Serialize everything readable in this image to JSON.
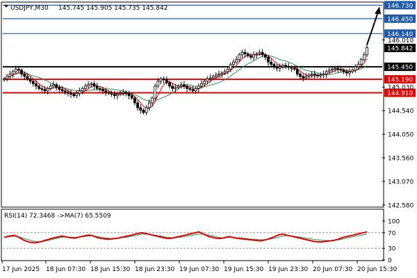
{
  "header": {
    "symbol": "USDJPY,M30",
    "ohlc": "145.745 145.905 145.735 145.842"
  },
  "rsi_header": "RSI(14) 72.3468   ->MA(7) 65.5509",
  "chart_data": [
    {
      "type": "candlestick",
      "title": "USDJPY,M30",
      "ylim": [
        142.55,
        146.78
      ],
      "y_ticks": [
        "146.730",
        "146.450",
        "146.140",
        "146.010",
        "145.842",
        "145.450",
        "145.190",
        "145.030",
        "144.910",
        "144.540",
        "144.050",
        "143.560",
        "143.070",
        "142.580"
      ],
      "x_ticks": [
        "17 Jun 2025",
        "18 Jun 07:30",
        "18 Jun 15:30",
        "18 Jun 23:30",
        "19 Jun 07:30",
        "19 Jun 15:30",
        "19 Jun 23:30",
        "20 Jun 07:30",
        "20 Jun 15:30"
      ],
      "levels": [
        {
          "value": 146.73,
          "label": "146.730",
          "color": "#1e5aa8"
        },
        {
          "value": 146.45,
          "label": "146.450",
          "color": "#1e5aa8"
        },
        {
          "value": 146.14,
          "label": "146.140",
          "color": "#1e5aa8"
        },
        {
          "value": 145.45,
          "label": "145.450",
          "color": "#000000"
        },
        {
          "value": 145.19,
          "label": "145.190",
          "color": "#e00000"
        },
        {
          "value": 144.91,
          "label": "144.910",
          "color": "#e00000"
        }
      ],
      "current_price": "145.842",
      "close_prices": [
        145.2,
        145.25,
        145.3,
        145.35,
        145.4,
        145.38,
        145.3,
        145.25,
        145.2,
        145.15,
        145.1,
        145.05,
        145.0,
        144.98,
        144.95,
        145.0,
        145.05,
        145.08,
        145.02,
        144.98,
        144.95,
        144.92,
        144.9,
        144.88,
        144.85,
        144.9,
        144.95,
        145.0,
        145.05,
        145.08,
        145.1,
        145.05,
        145.0,
        144.98,
        144.95,
        144.92,
        144.9,
        144.88,
        144.85,
        144.88,
        144.9,
        144.92,
        144.9,
        144.85,
        144.8,
        144.7,
        144.6,
        144.55,
        144.5,
        144.6,
        144.7,
        144.8,
        145.05,
        145.15,
        145.2,
        145.18,
        145.12,
        145.05,
        145.0,
        145.02,
        145.05,
        145.08,
        145.05,
        145.0,
        144.98,
        144.95,
        145.0,
        145.05,
        145.1,
        145.15,
        145.2,
        145.22,
        145.25,
        145.28,
        145.3,
        145.32,
        145.35,
        145.4,
        145.5,
        145.55,
        145.6,
        145.7,
        145.75,
        145.72,
        145.68,
        145.65,
        145.7,
        145.72,
        145.75,
        145.7,
        145.65,
        145.55,
        145.5,
        145.45,
        145.42,
        145.45,
        145.48,
        145.46,
        145.44,
        145.42,
        145.4,
        145.3,
        145.25,
        145.22,
        145.25,
        145.28,
        145.3,
        145.28,
        145.26,
        145.28,
        145.3,
        145.35,
        145.38,
        145.4,
        145.42,
        145.4,
        145.38,
        145.35,
        145.32,
        145.35,
        145.38,
        145.45,
        145.5,
        145.6,
        145.7,
        145.85
      ],
      "arrow_target": 146.73
    },
    {
      "type": "line",
      "title": "RSI(14)",
      "ylim": [
        0,
        100
      ],
      "y_ticks": [
        "100",
        "70",
        "30",
        "0"
      ],
      "levels": [
        70,
        30
      ],
      "series": [
        {
          "name": "RSI(14)",
          "color": "#e00000",
          "values": [
            58,
            60,
            62,
            63,
            60,
            55,
            50,
            47,
            45,
            44,
            45,
            47,
            50,
            52,
            55,
            57,
            59,
            61,
            60,
            58,
            57,
            56,
            58,
            60,
            62,
            64,
            63,
            60,
            57,
            55,
            54,
            53,
            54,
            55,
            56,
            58,
            60,
            62,
            64,
            66,
            68,
            70,
            68,
            66,
            64,
            62,
            60,
            58,
            56,
            55,
            56,
            58,
            60,
            62,
            64,
            66,
            68,
            70,
            72,
            68,
            64,
            60,
            58,
            56,
            55,
            56,
            58,
            60,
            58,
            56,
            55,
            54,
            53,
            52,
            51,
            50,
            49,
            50,
            52,
            55,
            58,
            62,
            65,
            66,
            64,
            62,
            60,
            58,
            56,
            54,
            52,
            50,
            48,
            47,
            46,
            47,
            48,
            49,
            50,
            52,
            55,
            58,
            60,
            62,
            64,
            66,
            68,
            70,
            72
          ]
        },
        {
          "name": "MA(7)",
          "color": "#2e8b57",
          "values": [
            58,
            59,
            60,
            61,
            60,
            58,
            55,
            52,
            50,
            48,
            47,
            47,
            48,
            50,
            52,
            54,
            56,
            58,
            59,
            59,
            58,
            58,
            58,
            59,
            60,
            61,
            62,
            61,
            60,
            58,
            57,
            56,
            55,
            55,
            56,
            57,
            58,
            59,
            61,
            62,
            64,
            66,
            66,
            66,
            65,
            64,
            62,
            61,
            59,
            58,
            57,
            57,
            58,
            59,
            60,
            62,
            63,
            65,
            66,
            66,
            65,
            64,
            62,
            60,
            58,
            57,
            57,
            58,
            58,
            57,
            57,
            56,
            55,
            54,
            53,
            53,
            52,
            52,
            52,
            53,
            55,
            57,
            59,
            61,
            62,
            62,
            61,
            60,
            59,
            57,
            56,
            55,
            53,
            52,
            51,
            50,
            50,
            50,
            50,
            51,
            52,
            54,
            56,
            58,
            60,
            62,
            63,
            65,
            66
          ]
        }
      ]
    }
  ]
}
